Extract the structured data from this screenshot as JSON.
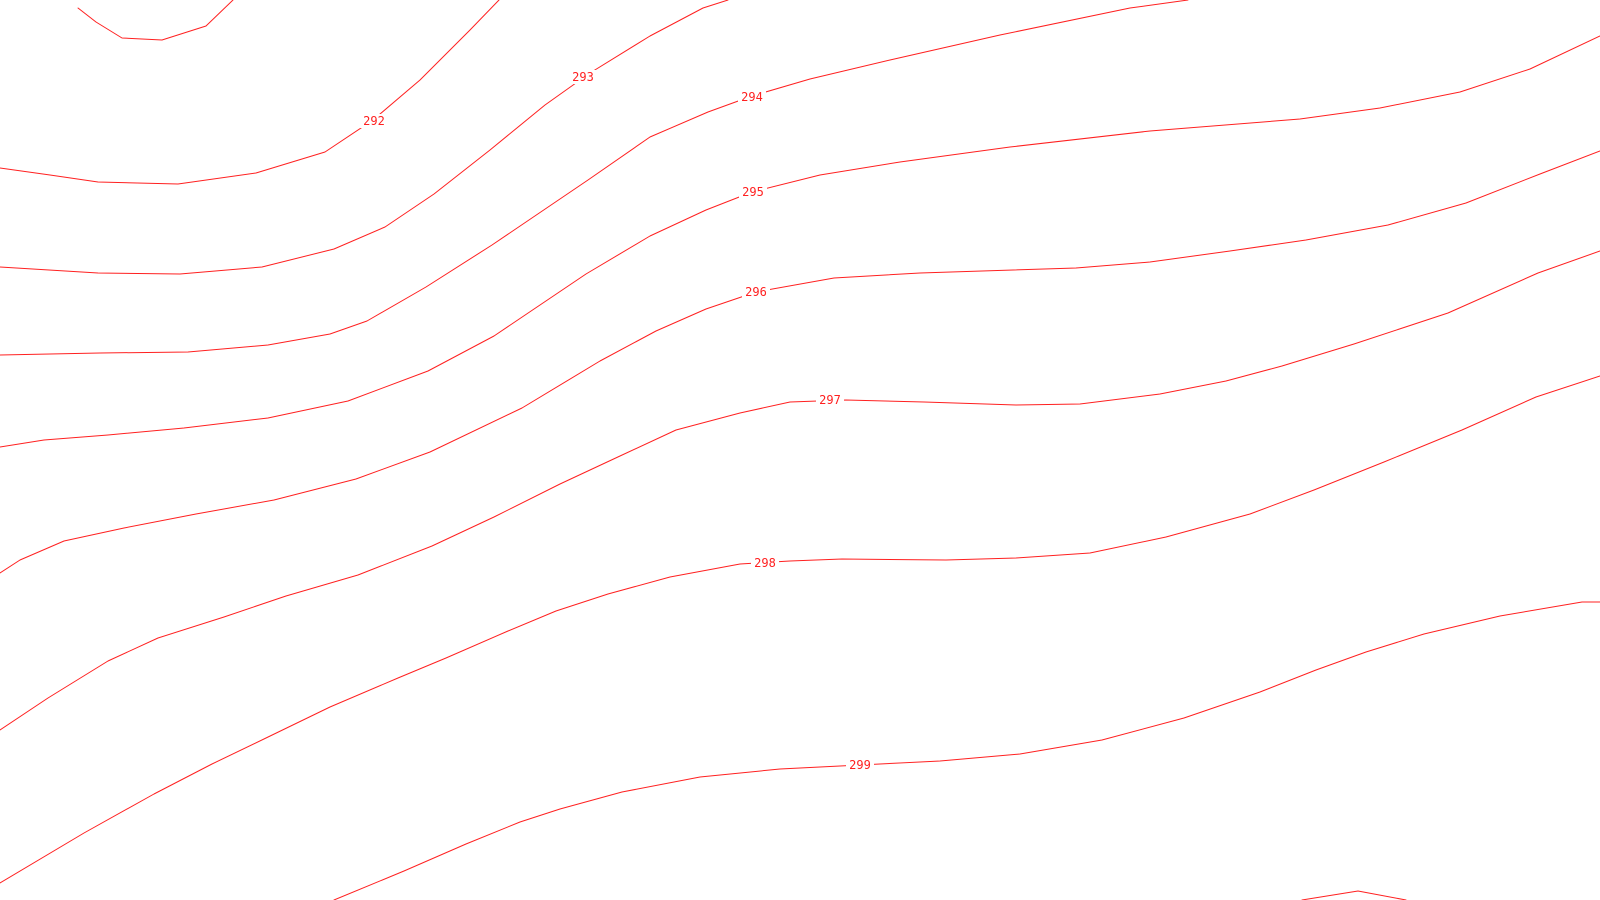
{
  "map": {
    "line_color": "#ff2020",
    "background_color": "#ffffff",
    "contour_labels": [
      "292",
      "293",
      "294",
      "295",
      "296",
      "297",
      "298",
      "299"
    ]
  }
}
